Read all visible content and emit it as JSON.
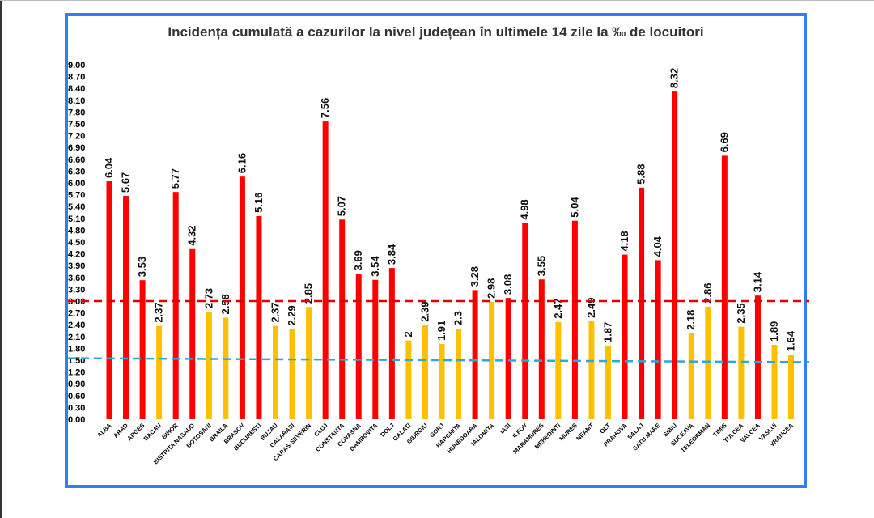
{
  "chart_data": {
    "type": "bar",
    "title": "Incidența cumulată a cazurilor la nivel județean în ultimele 14 zile la ‰ de locuitori",
    "ylim": [
      0,
      9
    ],
    "yticks": [
      "9.00",
      "8.70",
      "8.40",
      "8.10",
      "7.80",
      "7.50",
      "7.20",
      "6.90",
      "6.60",
      "6.30",
      "6.00",
      "5.70",
      "5.40",
      "5.10",
      "4.80",
      "4.50",
      "4.20",
      "3.90",
      "3.60",
      "3.30",
      "3.00",
      "2.70",
      "2.40",
      "2.10",
      "1.80",
      "1.50",
      "1.20",
      "0.90",
      "0.60",
      "0.30",
      "0.00"
    ],
    "categories": [
      "ALBA",
      "ARAD",
      "ARGES",
      "BACAU",
      "BIHOR",
      "BISTRITA NASAUD",
      "BOTOSANI",
      "BRAILA",
      "BRASOV",
      "BUCURESTI",
      "BUZAU",
      "CALARASI",
      "CARAS-SEVERIN",
      "CLUJ",
      "CONSTANTA",
      "COVASNA",
      "DAMBOVITA",
      "DOLJ",
      "GALATI",
      "GIURGIU",
      "GORJ",
      "HARGHITA",
      "HUNEDOARA",
      "IALOMITA",
      "IASI",
      "ILFOV",
      "MARAMURES",
      "MEHEDINTI",
      "MURES",
      "NEAMT",
      "OLT",
      "PRAHOVA",
      "SALAJ",
      "SATU MARE",
      "SIBIU",
      "SUCEAVA",
      "TELEORMAN",
      "TIMIS",
      "TULCEA",
      "VALCEA",
      "VASLUI",
      "VRANCEA"
    ],
    "values": [
      6.04,
      5.67,
      3.53,
      2.37,
      5.77,
      4.32,
      2.73,
      2.58,
      6.16,
      5.16,
      2.37,
      2.29,
      2.85,
      7.56,
      5.07,
      3.69,
      3.54,
      3.84,
      2,
      2.39,
      1.91,
      2.3,
      3.28,
      2.98,
      3.08,
      4.98,
      3.55,
      2.47,
      5.04,
      2.49,
      1.87,
      4.18,
      5.88,
      4.04,
      8.32,
      2.18,
      2.86,
      6.69,
      2.35,
      3.14,
      1.89,
      1.64
    ],
    "value_labels": [
      "6.04",
      "5.67",
      "3.53",
      "2.37",
      "5.77",
      "4.32",
      "2.73",
      "2.58",
      "6.16",
      "5.16",
      "2.37",
      "2.29",
      "2.85",
      "7.56",
      "5.07",
      "3.69",
      "3.54",
      "3.84",
      "2",
      "2.39",
      "1.91",
      "2.3",
      "3.28",
      "2.98",
      "3.08",
      "4.98",
      "3.55",
      "2.47",
      "5.04",
      "2.49",
      "1.87",
      "4.18",
      "5.88",
      "4.04",
      "8.32",
      "2.18",
      "2.86",
      "6.69",
      "2.35",
      "3.14",
      "1.89",
      "1.64"
    ],
    "threshold_high": 3.0,
    "threshold_low_start": 1.55,
    "threshold_low_end": 1.45,
    "colors": {
      "above_threshold": "#ff0000",
      "below_threshold": "#ffc000",
      "threshold_high_line": "#e00000",
      "threshold_low_line": "#2aa8d8"
    },
    "grid": false,
    "legend": "none"
  }
}
